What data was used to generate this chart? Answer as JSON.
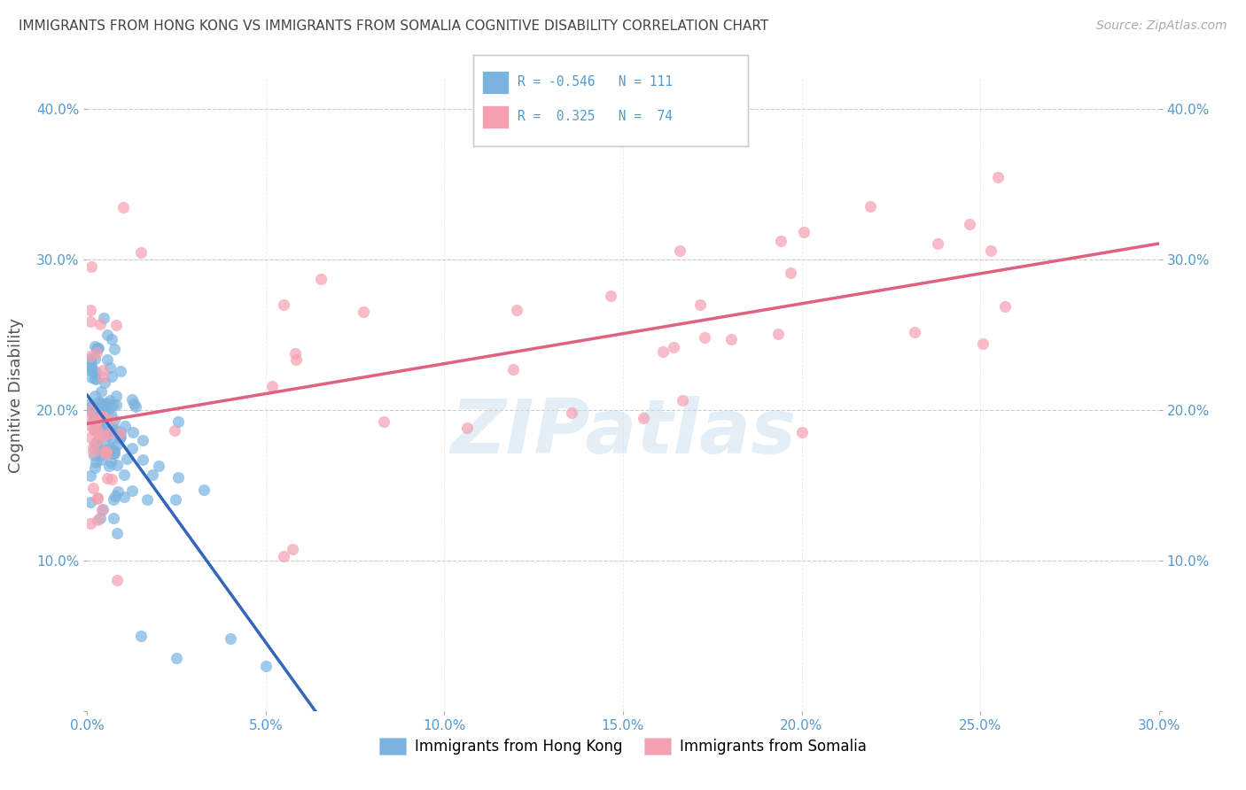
{
  "title": "IMMIGRANTS FROM HONG KONG VS IMMIGRANTS FROM SOMALIA COGNITIVE DISABILITY CORRELATION CHART",
  "source": "Source: ZipAtlas.com",
  "ylabel": "Cognitive Disability",
  "xlim": [
    0.0,
    0.3
  ],
  "ylim": [
    0.0,
    0.42
  ],
  "xticks": [
    0.0,
    0.05,
    0.1,
    0.15,
    0.2,
    0.25,
    0.3
  ],
  "yticks": [
    0.0,
    0.1,
    0.2,
    0.3,
    0.4
  ],
  "legend_label1": "Immigrants from Hong Kong",
  "legend_label2": "Immigrants from Somalia",
  "R1": -0.546,
  "N1": 111,
  "R2": 0.325,
  "N2": 74,
  "color_hk": "#7ab3e0",
  "color_som": "#f4a0b0",
  "trend_hk_color": "#3366bb",
  "trend_som_color": "#e06080",
  "trend_ext_color": "#bbccdd",
  "watermark": "ZIPatlas",
  "background_color": "#ffffff",
  "grid_color": "#cccccc",
  "title_color": "#444444",
  "axis_color": "#5599cc",
  "seed": 42
}
